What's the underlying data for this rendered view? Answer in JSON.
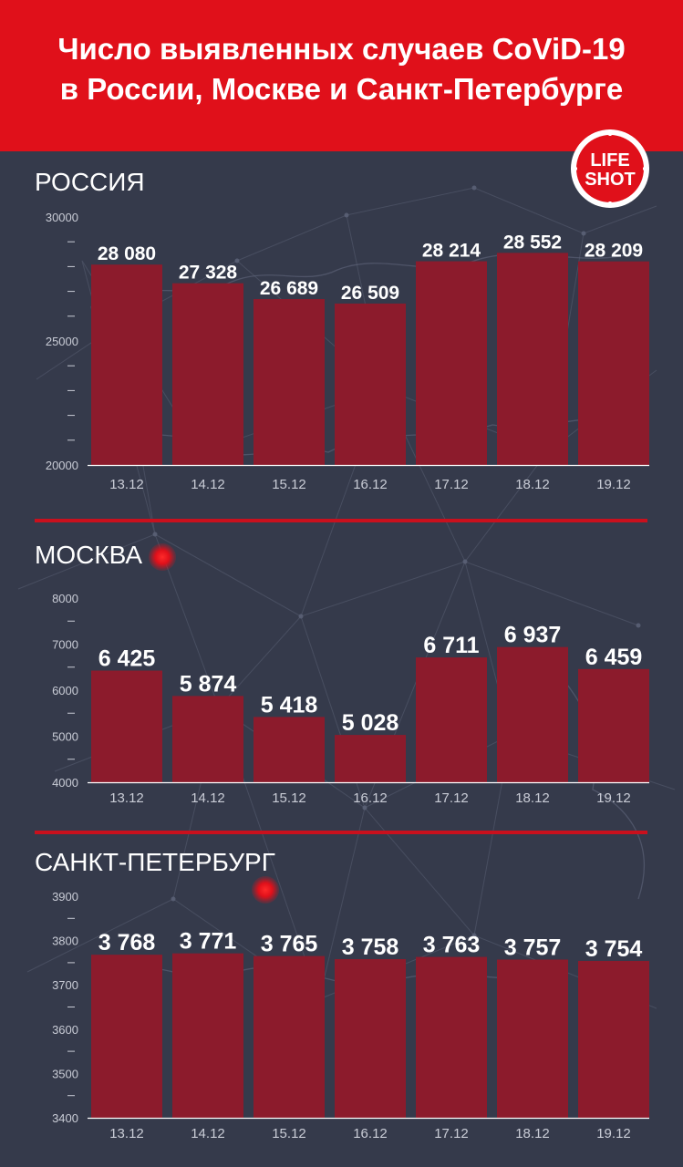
{
  "header": {
    "title_line1": "Число выявленных случаев CoViD-19",
    "title_line2": "в России, Москве и Санкт-Петербурге"
  },
  "logo": {
    "line1": "LIFE",
    "line2": "SHOT",
    "accent": "#e0101a"
  },
  "colors": {
    "background": "#353a4b",
    "header": "#e0101a",
    "bar": "#8c1b2c",
    "separator": "#c9101d",
    "axis_text": "#ffffff",
    "tick_label": "#c9ccd6"
  },
  "chart_data": [
    {
      "type": "bar",
      "title": "РОССИЯ",
      "categories": [
        "13.12",
        "14.12",
        "15.12",
        "16.12",
        "17.12",
        "18.12",
        "19.12"
      ],
      "values": [
        28080,
        27328,
        26689,
        26509,
        28214,
        28552,
        28209
      ],
      "value_labels": [
        "28 080",
        "27 328",
        "26 689",
        "26 509",
        "28 214",
        "28 552",
        "28 209"
      ],
      "ylim": [
        20000,
        30000
      ],
      "yticks": [
        20000,
        25000,
        30000
      ],
      "ytick_labels": [
        "20000",
        "25000",
        "30000"
      ],
      "minor_ticks_per_interval": 5,
      "xlabel": "",
      "ylabel": ""
    },
    {
      "type": "bar",
      "title": "МОСКВА",
      "categories": [
        "13.12",
        "14.12",
        "15.12",
        "16.12",
        "17.12",
        "18.12",
        "19.12"
      ],
      "values": [
        6425,
        5874,
        5418,
        5028,
        6711,
        6937,
        6459
      ],
      "value_labels": [
        "6 425",
        "5 874",
        "5 418",
        "5 028",
        "6 711",
        "6 937",
        "6 459"
      ],
      "ylim": [
        4000,
        8000
      ],
      "yticks": [
        4000,
        5000,
        6000,
        7000,
        8000
      ],
      "ytick_labels": [
        "4000",
        "5000",
        "6000",
        "7000",
        "8000"
      ],
      "minor_ticks_per_interval": 2,
      "xlabel": "",
      "ylabel": ""
    },
    {
      "type": "bar",
      "title": "САНКТ-ПЕТЕРБУРГ",
      "categories": [
        "13.12",
        "14.12",
        "15.12",
        "16.12",
        "17.12",
        "18.12",
        "19.12"
      ],
      "values": [
        3768,
        3771,
        3765,
        3758,
        3763,
        3757,
        3754
      ],
      "value_labels": [
        "3 768",
        "3 771",
        "3 765",
        "3 758",
        "3 763",
        "3 757",
        "3 754"
      ],
      "ylim": [
        3400,
        3900
      ],
      "yticks": [
        3400,
        3500,
        3600,
        3700,
        3800,
        3900
      ],
      "ytick_labels": [
        "3400",
        "3500",
        "3600",
        "3700",
        "3800",
        "3900"
      ],
      "minor_ticks_per_interval": 2,
      "xlabel": "",
      "ylabel": ""
    }
  ]
}
